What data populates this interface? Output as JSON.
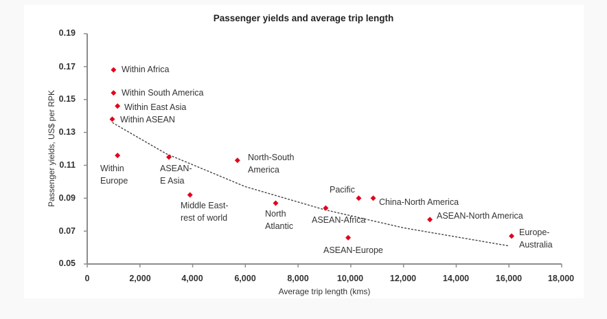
{
  "chart_data": {
    "type": "scatter",
    "title": "Passenger yields and average trip length",
    "xlabel": "Average trip length (kms)",
    "ylabel": "Passenger yields, US$ per RPK",
    "xlim": [
      0,
      18000
    ],
    "ylim": [
      0.05,
      0.19
    ],
    "x_ticks": [
      "0",
      "2,000",
      "4,000",
      "6,000",
      "8,000",
      "10,000",
      "12,000",
      "14,000",
      "16,000",
      "18,000"
    ],
    "y_ticks": [
      "0.05",
      "0.07",
      "0.09",
      "0.11",
      "0.13",
      "0.15",
      "0.17",
      "0.19"
    ],
    "grid": false,
    "legend": null,
    "marker_color": "#e3001b",
    "trendline": {
      "style": "dashed",
      "color": "#444444",
      "points": [
        [
          950,
          0.136
        ],
        [
          3000,
          0.117
        ],
        [
          6000,
          0.097
        ],
        [
          9000,
          0.083
        ],
        [
          12000,
          0.072
        ],
        [
          16000,
          0.061
        ]
      ]
    },
    "points": [
      {
        "label": "Within Africa",
        "x": 1000,
        "y": 0.168
      },
      {
        "label": "Within South America",
        "x": 1000,
        "y": 0.154
      },
      {
        "label": "Within East Asia",
        "x": 1150,
        "y": 0.146
      },
      {
        "label": "Within ASEAN",
        "x": 950,
        "y": 0.138
      },
      {
        "label": "Within Europe",
        "x": 1150,
        "y": 0.116
      },
      {
        "label": "ASEAN-E Asia",
        "x": 3100,
        "y": 0.115
      },
      {
        "label": "Middle East-rest of world",
        "x": 3900,
        "y": 0.092
      },
      {
        "label": "North-South America",
        "x": 5700,
        "y": 0.113
      },
      {
        "label": "North Atlantic",
        "x": 7150,
        "y": 0.087
      },
      {
        "label": "ASEAN-Africa",
        "x": 9050,
        "y": 0.084
      },
      {
        "label": "ASEAN-Europe",
        "x": 9900,
        "y": 0.066
      },
      {
        "label": "Pacific",
        "x": 10300,
        "y": 0.09
      },
      {
        "label": "China-North America",
        "x": 10850,
        "y": 0.09
      },
      {
        "label": "ASEAN-North America",
        "x": 13000,
        "y": 0.077
      },
      {
        "label": "Europe-Australia",
        "x": 16100,
        "y": 0.067
      }
    ]
  },
  "labels": {
    "within_africa": "Within Africa",
    "within_south_america": "Within South America",
    "within_east_asia": "Within East Asia",
    "within_asean": "Within ASEAN",
    "within_europe": "Within\nEurope",
    "asean_e_asia": "ASEAN-\nE Asia",
    "middle_east": "Middle East-\nrest of world",
    "north_south_america": "North-South\nAmerica",
    "north_atlantic": "North\nAtlantic",
    "asean_africa": "ASEAN-Africa",
    "asean_europe": "ASEAN-Europe",
    "pacific": "Pacific",
    "china_north_america": "China-North America",
    "asean_north_america": "ASEAN-North America",
    "europe_australia": "Europe-\nAustralia"
  }
}
